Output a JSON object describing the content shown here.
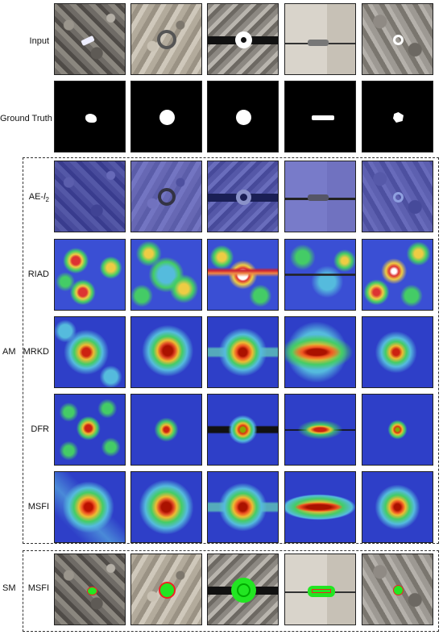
{
  "rows": {
    "input": "Input",
    "ground_truth": "Ground Truth",
    "ae_l2": "AE-",
    "ae_l2_sub": "2",
    "riad": "RIAD",
    "mrkd": "MRKD",
    "dfr": "DFR",
    "msfi_am": "MSFI",
    "msfi_sm": "MSFI"
  },
  "groups": {
    "am": "AM",
    "sm": "SM"
  },
  "colors": {
    "heat_red": "#c0161a",
    "heat_yellow": "#f0d43a",
    "heat_green": "#4fcf6a",
    "heat_cyan": "#4ad0e6",
    "heat_blue": "#2b3fd0",
    "seg_green": "#22e622"
  }
}
